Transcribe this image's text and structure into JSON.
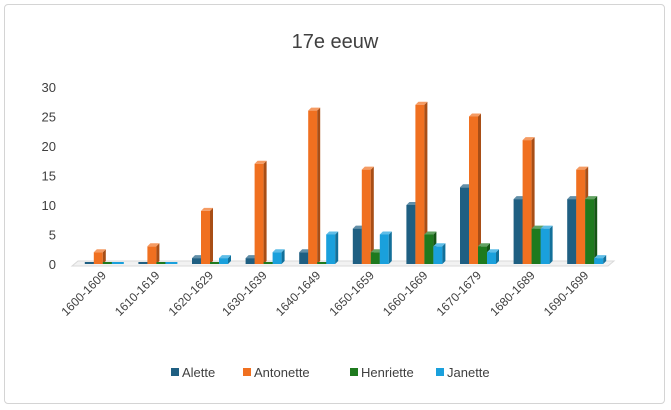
{
  "chart_data": {
    "type": "bar",
    "title": "17e eeuw",
    "xlabel": "",
    "ylabel": "",
    "ylim": [
      0,
      30
    ],
    "yticks": [
      "0",
      "5",
      "10",
      "15",
      "20",
      "25",
      "30"
    ],
    "grid": false,
    "legend_position": "bottom",
    "categories": [
      "1600-1609",
      "1610-1619",
      "1620-1629",
      "1630-1639",
      "1640-1649",
      "1650-1659",
      "1660-1669",
      "1670-1679",
      "1680-1689",
      "1690-1699"
    ],
    "series": [
      {
        "name": "Alette",
        "color": "#1f5f82",
        "values": [
          0,
          0,
          1,
          1,
          2,
          6,
          10,
          13,
          11,
          11
        ]
      },
      {
        "name": "Antonette",
        "color": "#f07020",
        "values": [
          2,
          3,
          9,
          17,
          26,
          16,
          27,
          25,
          21,
          16
        ]
      },
      {
        "name": "Henriette",
        "color": "#1e7a1e",
        "values": [
          0,
          0,
          0,
          0,
          0,
          2,
          5,
          3,
          6,
          11
        ]
      },
      {
        "name": "Janette",
        "color": "#1aa0dc",
        "values": [
          0,
          0,
          1,
          2,
          5,
          5,
          3,
          2,
          6,
          1
        ]
      }
    ]
  }
}
